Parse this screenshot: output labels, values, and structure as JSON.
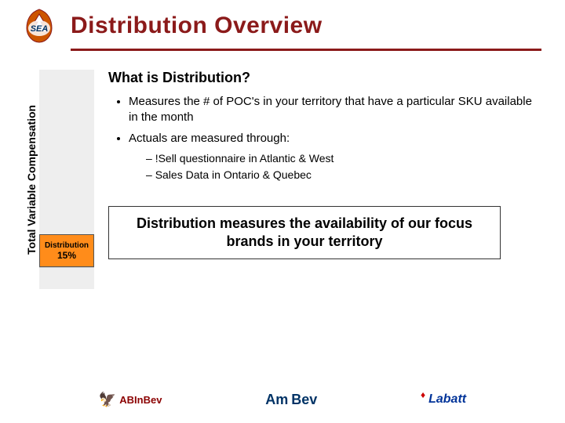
{
  "colors": {
    "title": "#8b1a1a",
    "rule": "#8b1a1a",
    "highlight_bg": "#ff8c1a",
    "bar_bg": "#eeeeee",
    "text": "#000000"
  },
  "header": {
    "title": "Distribution Overview"
  },
  "axis": {
    "label": "Total Variable Compensation"
  },
  "bar": {
    "highlight": {
      "label": "Distribution",
      "value": "15%",
      "height_pct": 15
    },
    "below_pct": 10
  },
  "content": {
    "subhead": "What is Distribution?",
    "bullets": [
      "Measures the # of POC's in your territory that have a particular SKU available in the month",
      "Actuals are measured through:"
    ],
    "sub_bullets": [
      "!Sell questionnaire in Atlantic & West",
      "Sales Data in Ontario & Quebec"
    ],
    "callout": "Distribution measures the availability of our focus brands in your territory"
  },
  "footer": {
    "brands": [
      "ABInBev",
      "AmBev",
      "Labatt"
    ]
  }
}
